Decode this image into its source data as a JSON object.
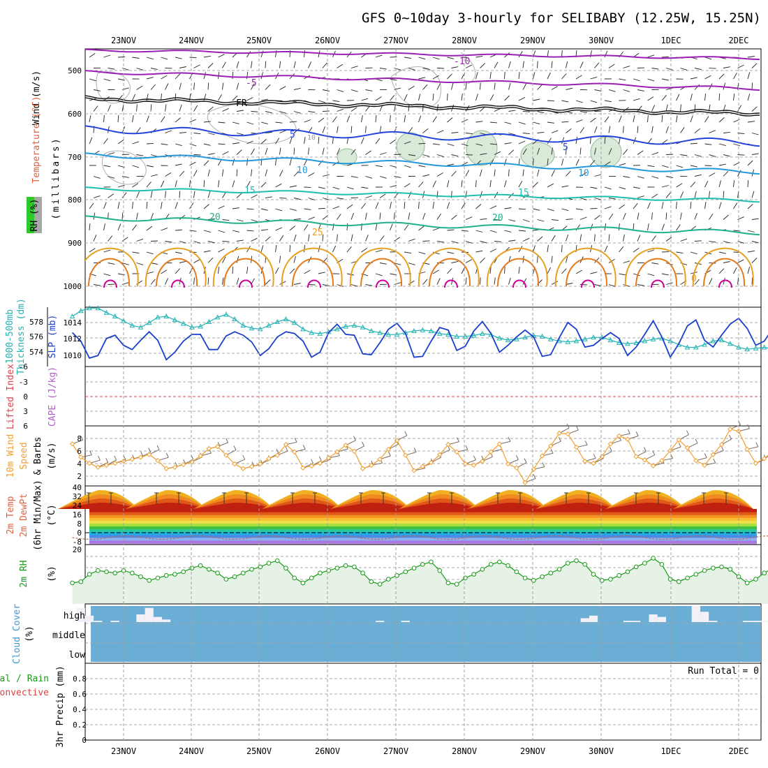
{
  "title": "GFS 0~10day 3-hourly for SELIBABY (12.25W, 15.25N)",
  "dates": [
    "23NOV",
    "24NOV",
    "25NOV",
    "26NOV",
    "27NOV",
    "28NOV",
    "29NOV",
    "30NOV",
    "1DEC",
    "2DEC"
  ],
  "colors": {
    "grid": "#aaaaaa",
    "purple": "#9a1fb5",
    "black": "#000000",
    "blue": "#2244dd",
    "lightblue": "#2299dd",
    "teal": "#1fbfb0",
    "green": "#20b08a",
    "orange": "#e8a020",
    "darkorange": "#e67a1a",
    "magenta": "#cc0099",
    "slp": "#1a3fcc",
    "thick": "#22b3b3",
    "wind": "#f0a030",
    "rh": "#1a9a1a",
    "rhfill": "#e6f2e6",
    "cloud": "#6aaed6",
    "ref": "#e04040"
  },
  "panels": {
    "upper": {
      "labels": [
        {
          "text": "Wind (m/s)",
          "color": "#000000"
        },
        {
          "text": "Temperature (°C)",
          "color": "#e06040"
        },
        {
          "text": "RH (%)",
          "color": "#000000"
        },
        {
          "text": "(millibars)",
          "color": "#000000"
        }
      ],
      "yticks": [
        "500",
        "600",
        "700",
        "800",
        "900",
        "1000"
      ],
      "contour_labels": [
        "-10",
        "-5",
        "FR",
        "5",
        "10",
        "15",
        "20",
        "25",
        "10",
        "5",
        "10",
        "15",
        "20",
        "0"
      ]
    },
    "slp": {
      "labels": [
        "1000-500mb",
        "Thickness (dm)",
        "SLP (mb)"
      ],
      "left_ticks": [
        "578",
        "576",
        "574"
      ],
      "right_ticks": [
        "1014",
        "1012",
        "1010"
      ]
    },
    "li": {
      "labels": [
        "Lifted Index",
        "CAPE (J/kg)"
      ],
      "ticks": [
        "-6",
        "-3",
        "0",
        "3",
        "6"
      ]
    },
    "wind10": {
      "labels": [
        "10m Wind",
        "Speed",
        "& Barbs",
        "(m/s)"
      ],
      "ticks": [
        "8",
        "6",
        "4",
        "2"
      ]
    },
    "temp": {
      "labels": [
        "2m Temp",
        "2m DewPt",
        "(6hr Min/Max)",
        "(°C)"
      ],
      "ticks": [
        "40",
        "32",
        "24",
        "16",
        "8",
        "0",
        "-8"
      ]
    },
    "rh": {
      "labels": [
        "2m RH",
        "(%)"
      ],
      "ticks": [
        "20"
      ]
    },
    "cloud": {
      "labels": [
        "Cloud Cover",
        "(%)"
      ],
      "ticks": [
        "high",
        "middle",
        "low"
      ]
    },
    "precip": {
      "labels": [
        "Total / Rain",
        "Convective",
        "3hr Precip (mm)"
      ],
      "ticks": [
        "0.8",
        "0.6",
        "0.4",
        "0.2",
        "0"
      ],
      "run_total": "Run Total = 0"
    }
  },
  "chart_data": [
    {
      "type": "line",
      "name": "SLP (mb)",
      "unit": "mb",
      "ylim": [
        1008.5,
        1015.5
      ],
      "x_step_hours": 3,
      "values": [
        1012.5,
        1011.5,
        1009.5,
        1009.8,
        1011.8,
        1012.2,
        1011.0,
        1010.5,
        1011.6,
        1012.6,
        1011.6,
        1009.3,
        1010.2,
        1011.5,
        1012.3,
        1012.3,
        1010.5,
        1010.5,
        1012.1,
        1012.6,
        1012.2,
        1011.4,
        1009.8,
        1010.6,
        1012.0,
        1012.6,
        1012.4,
        1011.5,
        1009.6,
        1010.2,
        1012.5,
        1013.5,
        1012.3,
        1012.2,
        1010.0,
        1009.9,
        1011.3,
        1012.9,
        1013.6,
        1012.4,
        1009.6,
        1009.7,
        1011.5,
        1013.1,
        1012.8,
        1010.4,
        1010.9,
        1012.7,
        1013.8,
        1012.4,
        1010.2,
        1011.0,
        1012.0,
        1012.8,
        1012.0,
        1009.7,
        1009.9,
        1011.9,
        1013.7,
        1012.9,
        1010.8,
        1011.0,
        1011.8,
        1012.5,
        1011.8,
        1009.8,
        1010.8,
        1012.3,
        1013.9,
        1012.0,
        1009.6,
        1011.2,
        1013.3,
        1014.0,
        1011.6,
        1010.8,
        1012.2,
        1013.5,
        1014.2,
        1013.0,
        1011.0,
        1011.5,
        1013.0,
        1014.5,
        1013.0,
        1011.0,
        1011.8,
        1014.8,
        1014.0,
        1011.5,
        1011.7,
        1013.0,
        1014.1,
        1013.8,
        1011.6,
        1012.0,
        1013.0
      ]
    },
    {
      "type": "line",
      "name": "1000-500mb Thickness (dm)",
      "unit": "dm",
      "ylim": [
        572.5,
        579.0
      ],
      "x_step_hours": 3,
      "values": [
        578.0,
        578.6,
        578.9,
        578.9,
        578.4,
        578.0,
        577.5,
        577.0,
        576.8,
        577.3,
        577.9,
        578.0,
        577.6,
        577.2,
        576.8,
        576.9,
        577.4,
        577.9,
        578.2,
        577.7,
        577.0,
        576.7,
        576.6,
        577.0,
        577.4,
        577.7,
        577.3,
        576.6,
        576.2,
        576.1,
        576.3,
        576.6,
        576.9,
        577.0,
        576.8,
        576.4,
        576.2,
        576.0,
        576.0,
        576.2,
        576.4,
        576.5,
        576.4,
        576.1,
        576.0,
        575.8,
        575.8,
        575.9,
        576.1,
        576.0,
        575.6,
        575.4,
        575.5,
        575.7,
        575.9,
        575.8,
        575.5,
        575.3,
        575.2,
        575.3,
        575.5,
        575.7,
        575.7,
        575.4,
        575.1,
        575.0,
        575.1,
        575.3,
        575.5,
        575.6,
        575.3,
        574.9,
        574.6,
        574.6,
        574.9,
        575.3,
        575.4,
        575.0,
        574.6,
        574.4,
        574.5,
        574.6,
        574.4,
        574.1,
        573.9,
        573.8,
        574.1,
        574.3,
        574.2,
        573.9,
        573.6,
        573.4,
        573.5,
        573.7,
        573.5,
        573.1,
        572.8
      ]
    },
    {
      "type": "line",
      "name": "10m Wind Speed (m/s)",
      "unit": "m/s",
      "ylim": [
        0.5,
        9.5
      ],
      "x_step_hours": 3,
      "values": [
        6.8,
        4.8,
        3.9,
        3.3,
        3.6,
        3.9,
        4.2,
        4.5,
        4.8,
        5.2,
        4.3,
        3.1,
        3.3,
        3.7,
        4.1,
        5.0,
        6.1,
        6.4,
        5.1,
        3.8,
        3.1,
        3.4,
        3.8,
        4.6,
        5.1,
        6.7,
        5.6,
        3.2,
        3.5,
        3.9,
        4.7,
        5.6,
        6.6,
        5.7,
        3.1,
        3.6,
        4.5,
        6.0,
        7.3,
        5.1,
        2.8,
        3.4,
        4.0,
        5.2,
        6.7,
        5.6,
        3.8,
        3.6,
        4.2,
        5.6,
        6.8,
        3.8,
        3.2,
        1.0,
        3.0,
        5.0,
        6.5,
        8.4,
        8.3,
        6.3,
        4.2,
        3.9,
        4.9,
        6.8,
        8.0,
        7.5,
        4.9,
        4.4,
        3.5,
        4.3,
        5.8,
        7.4,
        6.2,
        4.3,
        3.6,
        5.2,
        6.7,
        9.0,
        8.7,
        6.0,
        3.9,
        4.6,
        5.7,
        7.2,
        9.0,
        8.8,
        7.3,
        5.9,
        4.3,
        3.9,
        4.0,
        4.6,
        5.6,
        6.4,
        6.9,
        6.1,
        6.7
      ]
    },
    {
      "type": "area",
      "name": "2m RH (%)",
      "unit": "%",
      "ylim": [
        0,
        24
      ],
      "x_step_hours": 3,
      "values": [
        8.5,
        9.0,
        12.0,
        13.5,
        13.0,
        12.5,
        13.5,
        12.5,
        11.0,
        9.5,
        10.5,
        11.5,
        12.0,
        13.0,
        14.5,
        15.5,
        14.0,
        12.5,
        10.0,
        11.0,
        12.5,
        14.0,
        15.0,
        16.5,
        17.5,
        14.5,
        10.5,
        8.5,
        10.5,
        12.5,
        13.5,
        14.5,
        15.5,
        15.0,
        12.5,
        9.0,
        8.0,
        10.0,
        11.5,
        13.0,
        14.5,
        16.0,
        17.0,
        13.5,
        8.5,
        8.0,
        10.5,
        12.0,
        14.0,
        16.0,
        17.0,
        15.5,
        13.0,
        10.5,
        9.5,
        11.0,
        12.5,
        14.0,
        16.5,
        17.5,
        16.0,
        12.0,
        9.5,
        10.0,
        11.5,
        13.0,
        15.0,
        16.5,
        18.5,
        16.0,
        10.0,
        9.0,
        10.5,
        12.0,
        13.5,
        14.5,
        15.0,
        14.0,
        11.0,
        8.5,
        10.0,
        12.5,
        14.5,
        16.0,
        16.5,
        15.5,
        12.0,
        9.5,
        8.5,
        10.0,
        12.0,
        14.5,
        16.5,
        18.0,
        19.0,
        20.5,
        21.5
      ]
    },
    {
      "type": "bar",
      "name": "High Cloud Cover (%)",
      "unit": "%",
      "ylim": [
        0,
        100
      ],
      "x_step_hours": 3,
      "values": [
        0,
        55,
        25,
        5,
        0,
        5,
        0,
        0,
        30,
        55,
        20,
        10,
        0,
        0,
        0,
        0,
        0,
        0,
        0,
        0,
        0,
        0,
        0,
        0,
        0,
        0,
        0,
        0,
        0,
        0,
        0,
        0,
        0,
        0,
        0,
        0,
        5,
        0,
        0,
        5,
        0,
        0,
        0,
        0,
        0,
        0,
        0,
        0,
        0,
        0,
        0,
        0,
        0,
        0,
        0,
        0,
        0,
        0,
        0,
        0,
        15,
        25,
        0,
        0,
        0,
        5,
        5,
        0,
        30,
        20,
        0,
        0,
        0,
        70,
        40,
        5,
        0,
        0,
        0,
        5,
        5,
        5,
        0,
        0,
        0,
        15,
        0,
        5,
        5,
        0,
        0,
        5,
        0,
        0,
        0,
        0,
        0
      ]
    },
    {
      "type": "bar",
      "name": "3hr Precip (mm)",
      "unit": "mm",
      "ylim": [
        0,
        1
      ],
      "x_step_hours": 3,
      "values": [
        0,
        0,
        0,
        0,
        0,
        0,
        0,
        0,
        0,
        0,
        0,
        0,
        0,
        0,
        0,
        0,
        0,
        0,
        0,
        0,
        0,
        0,
        0,
        0,
        0,
        0,
        0,
        0,
        0,
        0,
        0,
        0,
        0,
        0,
        0,
        0,
        0,
        0,
        0,
        0,
        0,
        0,
        0,
        0,
        0,
        0,
        0,
        0,
        0,
        0,
        0,
        0,
        0,
        0,
        0,
        0,
        0,
        0,
        0,
        0,
        0,
        0,
        0,
        0,
        0,
        0,
        0,
        0,
        0,
        0,
        0,
        0,
        0,
        0,
        0,
        0,
        0,
        0,
        0,
        0,
        0,
        0,
        0,
        0,
        0,
        0,
        0,
        0,
        0,
        0,
        0,
        0,
        0,
        0,
        0,
        0,
        0
      ]
    }
  ]
}
